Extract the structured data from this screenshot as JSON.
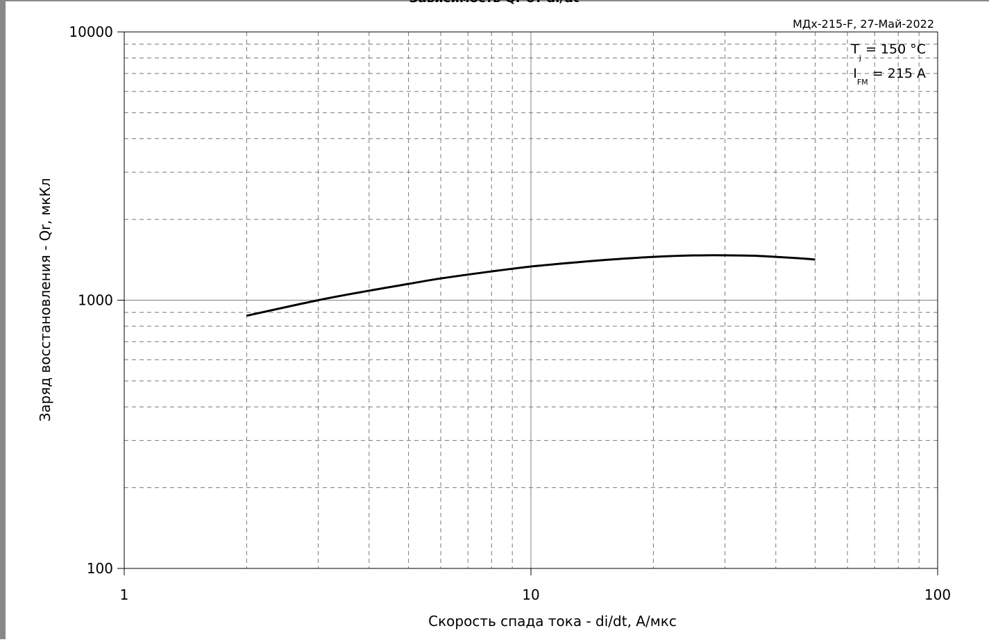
{
  "chart_data": {
    "type": "line",
    "title": "",
    "watermark": "МДх-215-F, 27-Май-2022",
    "xlabel": "Скорость спада тока - di/dt, A/мкс",
    "ylabel": "Заряд восстановления - Qr, мкКл",
    "x_scale": "log",
    "y_scale": "log",
    "xlim": [
      1,
      100
    ],
    "ylim": [
      100,
      10000
    ],
    "x_ticks": [
      {
        "value": 1,
        "label": "1"
      },
      {
        "value": 10,
        "label": "10"
      },
      {
        "value": 100,
        "label": "100"
      }
    ],
    "y_ticks": [
      {
        "value": 100,
        "label": "100"
      },
      {
        "value": 1000,
        "label": "1000"
      },
      {
        "value": 10000,
        "label": "10000"
      }
    ],
    "grid": true,
    "annotations": [
      {
        "main": "T",
        "sub": "j",
        "rest": " = 150 °C"
      },
      {
        "main": "I",
        "sub": "FM",
        "rest": " = 215 A"
      }
    ],
    "series": [
      {
        "color": "#000000",
        "x": [
          2,
          3,
          4,
          5,
          6,
          8,
          10,
          13,
          16,
          20,
          25,
          30,
          35,
          40,
          45,
          50
        ],
        "y": [
          875,
          1000,
          1085,
          1150,
          1205,
          1280,
          1335,
          1385,
          1420,
          1450,
          1468,
          1470,
          1465,
          1450,
          1435,
          1418
        ]
      }
    ]
  }
}
